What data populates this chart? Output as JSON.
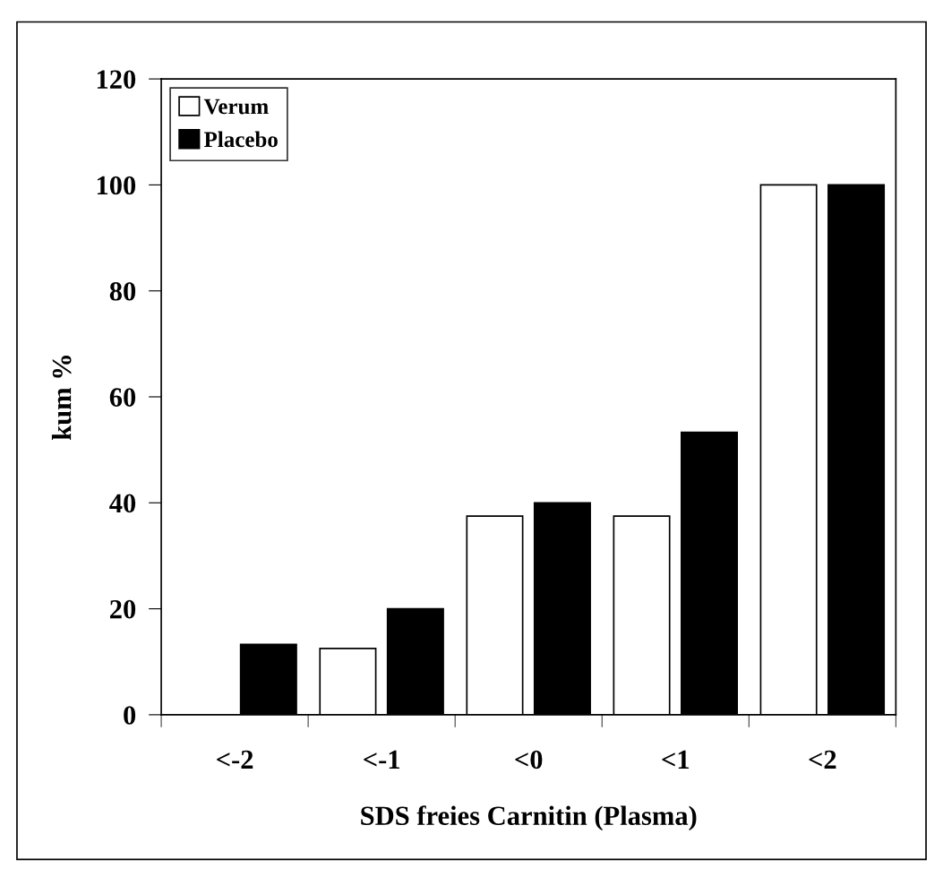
{
  "chart_data": {
    "type": "bar",
    "xlabel": "SDS freies Carnitin (Plasma)",
    "ylabel": "kum %",
    "categories": [
      "<-2",
      "<-1",
      "<0",
      "<1",
      "<2"
    ],
    "series": [
      {
        "name": "Verum",
        "color": "#ffffff",
        "values": [
          0,
          12.5,
          37.5,
          37.5,
          100
        ]
      },
      {
        "name": "Placebo",
        "color": "#000000",
        "values": [
          13.3,
          20,
          40,
          53.3,
          100
        ]
      }
    ],
    "ylim": [
      0,
      120
    ],
    "yticks": [
      0,
      20,
      40,
      60,
      80,
      100,
      120
    ],
    "grid": false,
    "legend": "top left"
  }
}
